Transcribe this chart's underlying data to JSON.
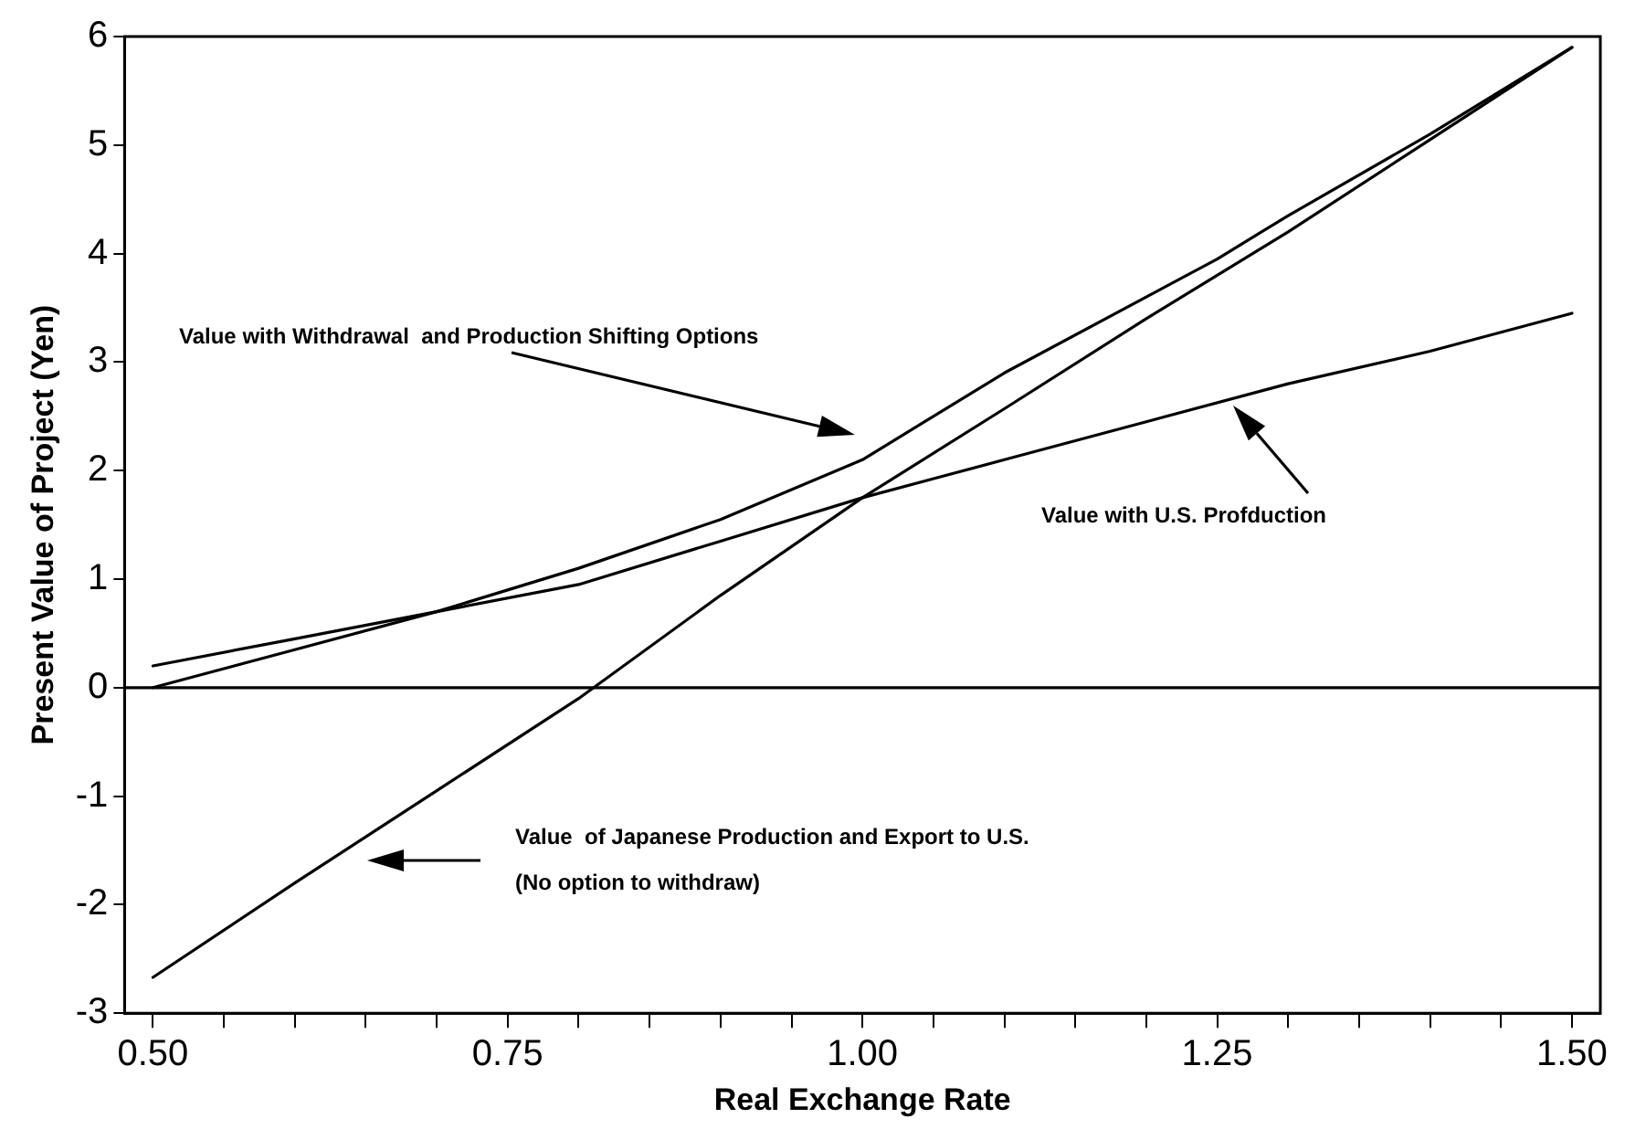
{
  "chart_data": {
    "type": "line",
    "xlabel": "Real Exchange Rate",
    "ylabel": "Present Value of Project (Yen)",
    "series": [
      {
        "color": "#000000",
        "x": [
          0.5,
          0.6,
          0.7,
          0.75,
          0.8,
          0.9,
          1.0,
          1.1,
          1.2,
          1.25,
          1.3,
          1.4,
          1.5
        ],
        "values": [
          0.0,
          0.35,
          0.7,
          0.9,
          1.1,
          1.55,
          2.1,
          2.9,
          3.6,
          3.95,
          4.35,
          5.1,
          5.9
        ]
      },
      {
        "color": "#000000",
        "x": [
          0.5,
          0.6,
          0.7,
          0.8,
          0.9,
          1.0,
          1.1,
          1.2,
          1.3,
          1.4,
          1.5
        ],
        "values": [
          0.2,
          0.45,
          0.7,
          0.95,
          1.35,
          1.75,
          2.1,
          2.45,
          2.8,
          3.1,
          3.45
        ]
      },
      {
        "color": "#000000",
        "x": [
          0.5,
          0.6,
          0.7,
          0.8,
          0.9,
          1.0,
          1.1,
          1.2,
          1.3,
          1.4,
          1.5
        ],
        "values": [
          -2.67,
          -1.8,
          -0.95,
          -0.1,
          0.85,
          1.75,
          2.57,
          3.4,
          4.2,
          5.05,
          5.9
        ]
      }
    ],
    "xlim": [
      0.48,
      1.52
    ],
    "xticks": [
      {
        "value": 0.5,
        "label": "0.50"
      },
      {
        "value": 0.55,
        "label": null
      },
      {
        "value": 0.6,
        "label": null
      },
      {
        "value": 0.65,
        "label": null
      },
      {
        "value": 0.7,
        "label": null
      },
      {
        "value": 0.75,
        "label": "0.75"
      },
      {
        "value": 0.8,
        "label": null
      },
      {
        "value": 0.85,
        "label": null
      },
      {
        "value": 0.9,
        "label": null
      },
      {
        "value": 0.95,
        "label": null
      },
      {
        "value": 1.0,
        "label": "1.00"
      },
      {
        "value": 1.05,
        "label": null
      },
      {
        "value": 1.1,
        "label": null
      },
      {
        "value": 1.15,
        "label": null
      },
      {
        "value": 1.2,
        "label": null
      },
      {
        "value": 1.25,
        "label": "1.25"
      },
      {
        "value": 1.3,
        "label": null
      },
      {
        "value": 1.35,
        "label": null
      },
      {
        "value": 1.4,
        "label": null
      },
      {
        "value": 1.45,
        "label": null
      },
      {
        "value": 1.5,
        "label": "1.50"
      }
    ],
    "ylim": [
      -3,
      6
    ],
    "yticks": [
      -3,
      -2,
      -1,
      0,
      1,
      2,
      3,
      4,
      5,
      6
    ],
    "ref_lines": [
      {
        "axis": "y",
        "value": 0,
        "color": "#000000"
      }
    ],
    "annotations": [
      "Value with Withdrawal  and Production Shifting Options",
      "Value with U.S. Profduction",
      "Value  of Japanese Production and Export to U.S.\n(No option to withdraw)"
    ],
    "grid": false,
    "legend": false,
    "marker": "none",
    "line_style": "solid"
  }
}
